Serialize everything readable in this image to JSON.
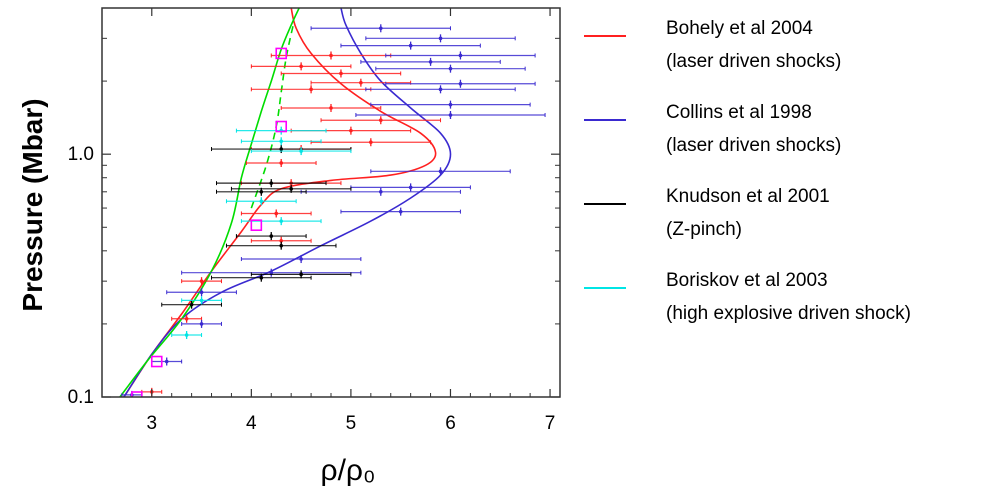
{
  "chart_data": {
    "type": "scatter",
    "xlabel": "ρ/ρ₀",
    "ylabel": "Pressure (Mbar)",
    "xlim": [
      2.5,
      7.1
    ],
    "ylim": [
      0.1,
      4.0
    ],
    "y_scale": "log",
    "x_ticks": [
      "3",
      "4",
      "5",
      "6",
      "7"
    ],
    "y_ticks": [
      "0.1",
      "1.0"
    ],
    "series": [
      {
        "name": "Bohely et al 2004\n(laser driven shocks)",
        "color": "#ff2020",
        "points": [
          {
            "x": 3.0,
            "y": 0.105,
            "xerr": 0.1
          },
          {
            "x": 3.35,
            "y": 0.21,
            "xerr": 0.15
          },
          {
            "x": 3.5,
            "y": 0.3,
            "xerr": 0.2
          },
          {
            "x": 4.3,
            "y": 0.44,
            "xerr": 0.3
          },
          {
            "x": 4.25,
            "y": 0.57,
            "xerr": 0.35
          },
          {
            "x": 4.4,
            "y": 0.76,
            "xerr": 0.5
          },
          {
            "x": 4.3,
            "y": 0.92,
            "xerr": 0.35
          },
          {
            "x": 4.5,
            "y": 1.05,
            "xerr": 0.5
          },
          {
            "x": 5.2,
            "y": 1.12,
            "xerr": 0.6
          },
          {
            "x": 5.0,
            "y": 1.25,
            "xerr": 0.6
          },
          {
            "x": 5.3,
            "y": 1.38,
            "xerr": 0.6
          },
          {
            "x": 4.8,
            "y": 1.55,
            "xerr": 0.5
          },
          {
            "x": 4.6,
            "y": 1.85,
            "xerr": 0.6
          },
          {
            "x": 5.1,
            "y": 1.97,
            "xerr": 0.5
          },
          {
            "x": 4.9,
            "y": 2.15,
            "xerr": 0.6
          },
          {
            "x": 4.5,
            "y": 2.3,
            "xerr": 0.5
          },
          {
            "x": 4.8,
            "y": 2.55,
            "xerr": 0.6
          }
        ],
        "model": [
          [
            2.72,
            0.1
          ],
          [
            3.0,
            0.15
          ],
          [
            3.3,
            0.22
          ],
          [
            3.6,
            0.33
          ],
          [
            3.9,
            0.48
          ],
          [
            4.1,
            0.62
          ],
          [
            4.3,
            0.72
          ],
          [
            4.8,
            0.78
          ],
          [
            5.4,
            0.82
          ],
          [
            5.75,
            0.9
          ],
          [
            5.85,
            1.02
          ],
          [
            5.7,
            1.22
          ],
          [
            5.3,
            1.5
          ],
          [
            4.9,
            1.95
          ],
          [
            4.6,
            2.6
          ],
          [
            4.45,
            3.3
          ],
          [
            4.4,
            4.0
          ]
        ]
      },
      {
        "name": "Collins et al 1998\n(laser driven shocks)",
        "color": "#3a2ad0",
        "points": [
          {
            "x": 2.8,
            "y": 0.102,
            "xerr": 0.1
          },
          {
            "x": 3.15,
            "y": 0.14,
            "xerr": 0.15
          },
          {
            "x": 3.5,
            "y": 0.2,
            "xerr": 0.2
          },
          {
            "x": 3.5,
            "y": 0.27,
            "xerr": 0.35
          },
          {
            "x": 4.2,
            "y": 0.325,
            "xerr": 0.9
          },
          {
            "x": 4.5,
            "y": 0.37,
            "xerr": 0.6
          },
          {
            "x": 5.5,
            "y": 0.58,
            "xerr": 0.6
          },
          {
            "x": 5.3,
            "y": 0.7,
            "xerr": 0.8
          },
          {
            "x": 5.6,
            "y": 0.73,
            "xerr": 0.6
          },
          {
            "x": 5.9,
            "y": 0.85,
            "xerr": 0.7
          },
          {
            "x": 6.0,
            "y": 1.45,
            "xerr": 0.95
          },
          {
            "x": 6.0,
            "y": 1.6,
            "xerr": 0.8
          },
          {
            "x": 5.9,
            "y": 1.85,
            "xerr": 0.75
          },
          {
            "x": 6.1,
            "y": 1.95,
            "xerr": 0.75
          },
          {
            "x": 6.0,
            "y": 2.25,
            "xerr": 0.75
          },
          {
            "x": 5.8,
            "y": 2.4,
            "xerr": 0.7
          },
          {
            "x": 6.1,
            "y": 2.55,
            "xerr": 0.75
          },
          {
            "x": 5.6,
            "y": 2.8,
            "xerr": 0.7
          },
          {
            "x": 5.9,
            "y": 3.0,
            "xerr": 0.75
          },
          {
            "x": 5.3,
            "y": 3.3,
            "xerr": 0.7
          }
        ],
        "model": [
          [
            2.72,
            0.1
          ],
          [
            3.0,
            0.15
          ],
          [
            3.3,
            0.21
          ],
          [
            3.7,
            0.27
          ],
          [
            4.2,
            0.33
          ],
          [
            4.7,
            0.42
          ],
          [
            5.2,
            0.53
          ],
          [
            5.6,
            0.66
          ],
          [
            5.9,
            0.82
          ],
          [
            6.0,
            1.0
          ],
          [
            5.9,
            1.22
          ],
          [
            5.6,
            1.55
          ],
          [
            5.3,
            2.0
          ],
          [
            5.1,
            2.6
          ],
          [
            4.95,
            3.4
          ],
          [
            4.9,
            4.0
          ]
        ]
      },
      {
        "name": "Knudson et al 2001\n(Z-pinch)",
        "color": "#000000",
        "points": [
          {
            "x": 3.4,
            "y": 0.24,
            "xerr": 0.3
          },
          {
            "x": 4.1,
            "y": 0.31,
            "xerr": 0.5
          },
          {
            "x": 4.5,
            "y": 0.32,
            "xerr": 0.5
          },
          {
            "x": 4.3,
            "y": 0.42,
            "xerr": 0.55
          },
          {
            "x": 4.2,
            "y": 0.46,
            "xerr": 0.35
          },
          {
            "x": 4.1,
            "y": 0.7,
            "xerr": 0.45
          },
          {
            "x": 4.4,
            "y": 0.72,
            "xerr": 0.6
          },
          {
            "x": 4.2,
            "y": 0.76,
            "xerr": 0.55
          },
          {
            "x": 4.3,
            "y": 1.05,
            "xerr": 0.7
          }
        ]
      },
      {
        "name": "Boriskov et al 2003\n(high explosive driven shock)",
        "color": "#00e5e5",
        "points": [
          {
            "x": 3.35,
            "y": 0.18,
            "xerr": 0.15
          },
          {
            "x": 3.5,
            "y": 0.25,
            "xerr": 0.2
          },
          {
            "x": 4.3,
            "y": 0.53,
            "xerr": 0.4
          },
          {
            "x": 4.1,
            "y": 0.64,
            "xerr": 0.35
          },
          {
            "x": 4.5,
            "y": 1.03,
            "xerr": 0.5
          },
          {
            "x": 4.3,
            "y": 1.13,
            "xerr": 0.4
          },
          {
            "x": 4.3,
            "y": 1.25,
            "xerr": 0.45
          }
        ]
      },
      {
        "name": "",
        "color": "#00dd00",
        "model": [
          [
            2.68,
            0.1
          ],
          [
            2.95,
            0.14
          ],
          [
            3.3,
            0.21
          ],
          [
            3.6,
            0.33
          ],
          [
            3.8,
            0.52
          ],
          [
            3.9,
            0.8
          ],
          [
            4.0,
            1.1
          ],
          [
            4.1,
            1.5
          ],
          [
            4.2,
            2.0
          ],
          [
            4.3,
            2.7
          ],
          [
            4.4,
            3.4
          ],
          [
            4.48,
            4.0
          ]
        ],
        "dashed_model": [
          [
            4.0,
            0.6
          ],
          [
            4.15,
            0.9
          ],
          [
            4.25,
            1.3
          ],
          [
            4.3,
            1.8
          ],
          [
            4.35,
            2.5
          ],
          [
            4.42,
            3.4
          ]
        ]
      },
      {
        "name": "",
        "color": "#ff00ff",
        "points": [
          {
            "x": 4.3,
            "y": 2.6
          },
          {
            "x": 4.3,
            "y": 1.3
          },
          {
            "x": 4.05,
            "y": 0.51
          },
          {
            "x": 3.05,
            "y": 0.14
          },
          {
            "x": 2.85,
            "y": 0.1
          }
        ]
      }
    ]
  }
}
